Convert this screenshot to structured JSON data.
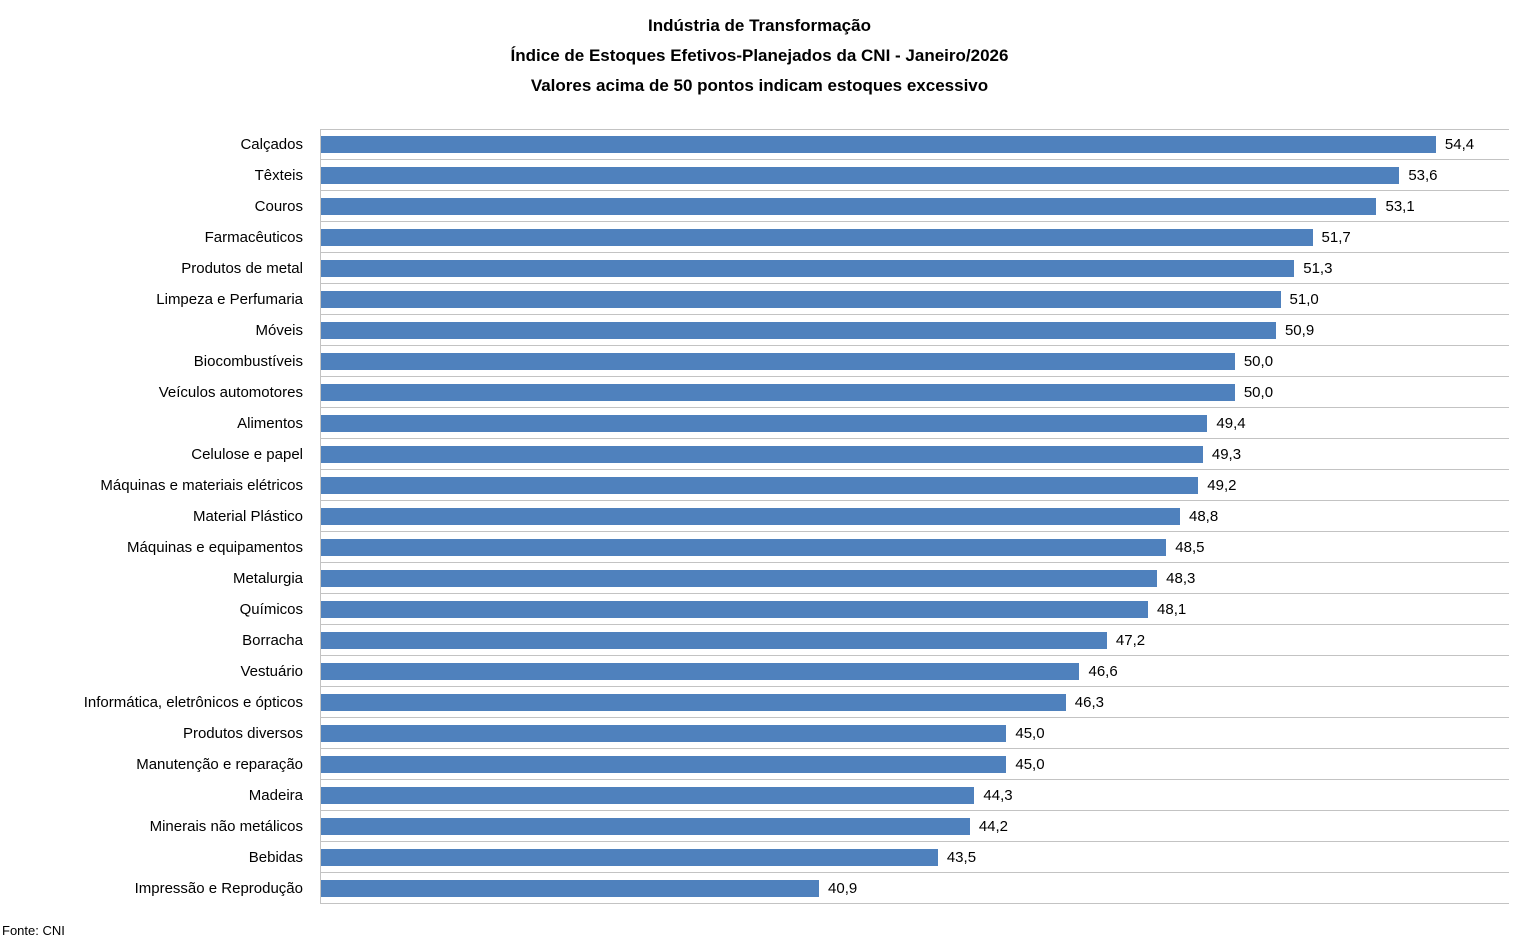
{
  "title": {
    "line1": "Indústria de Transformação",
    "line2": "Índice de Estoques Efetivos-Planejados da CNI - Janeiro/2026",
    "line3": "Valores acima de 50 pontos indicam estoques excessivo"
  },
  "source": "Fonte: CNI",
  "colors": {
    "bar": "#4f81bd",
    "gridline": "#c3c3c3",
    "text": "#000000",
    "background": "#ffffff"
  },
  "chart_data": {
    "type": "bar",
    "orientation": "horizontal",
    "title": "Indústria de Transformação — Índice de Estoques Efetivos-Planejados da CNI - Janeiro/2026",
    "subtitle": "Valores acima de 50 pontos indicam estoques excessivo",
    "xlabel": "",
    "ylabel": "",
    "xlim": [
      30,
      56
    ],
    "grid": "horizontal category separators, no value axis shown",
    "legend": false,
    "decimal_separator": ",",
    "categories": [
      "Calçados",
      "Têxteis",
      "Couros",
      "Farmacêuticos",
      "Produtos de metal",
      "Limpeza e Perfumaria",
      "Móveis",
      "Biocombustíveis",
      "Veículos automotores",
      "Alimentos",
      "Celulose e papel",
      "Máquinas e materiais elétricos",
      "Material Plástico",
      "Máquinas e equipamentos",
      "Metalurgia",
      "Químicos",
      "Borracha",
      "Vestuário",
      "Informática, eletrônicos e ópticos",
      "Produtos diversos",
      "Manutenção e reparação",
      "Madeira",
      "Minerais não metálicos",
      "Bebidas",
      "Impressão e Reprodução"
    ],
    "values": [
      54.4,
      53.6,
      53.1,
      51.7,
      51.3,
      51.0,
      50.9,
      50.0,
      50.0,
      49.4,
      49.3,
      49.2,
      48.8,
      48.5,
      48.3,
      48.1,
      47.2,
      46.6,
      46.3,
      45.0,
      45.0,
      44.3,
      44.2,
      43.5,
      40.9
    ]
  }
}
